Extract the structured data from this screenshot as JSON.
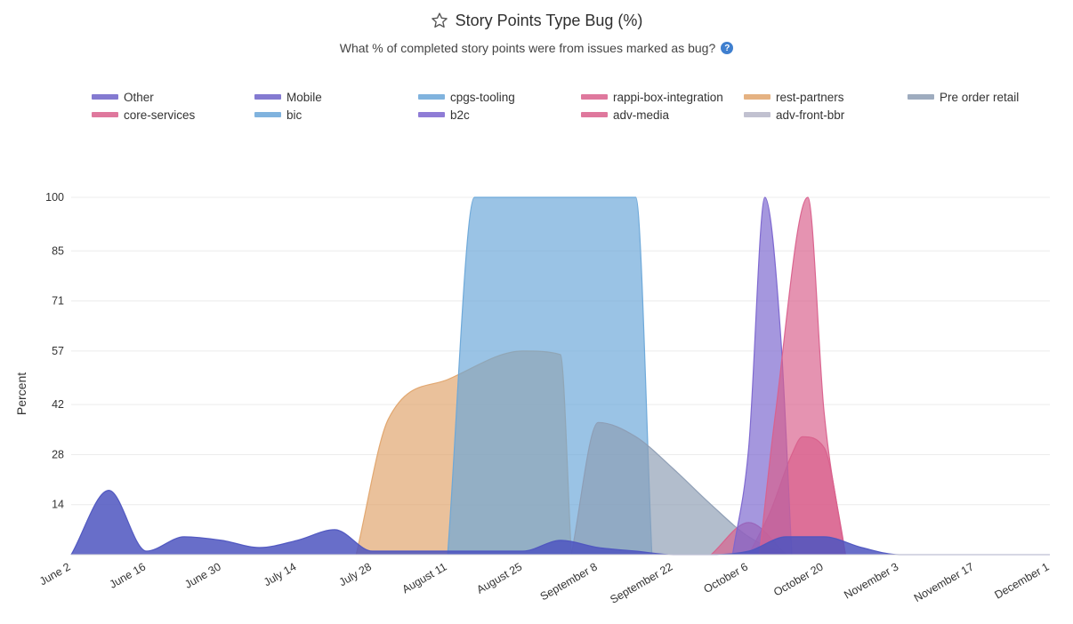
{
  "header": {
    "title": "Story Points Type Bug (%)",
    "subtitle": "What % of completed story points were from issues marked as bug?",
    "star_icon": "star-outline-icon",
    "help_icon": "question-circle-icon",
    "help_glyph": "?"
  },
  "chart_data": {
    "type": "area",
    "title": "Story Points Type Bug (%)",
    "subtitle": "What % of completed story points were from issues marked as bug?",
    "xlabel": "",
    "ylabel": "Percent",
    "x_ticks": [
      "June 2",
      "June 16",
      "June 30",
      "July 14",
      "July 28",
      "August 11",
      "August 25",
      "September 8",
      "September 22",
      "October 6",
      "October 20",
      "November 3",
      "November 17",
      "December 1"
    ],
    "y_ticks": [
      14,
      28,
      42,
      57,
      71,
      85,
      100
    ],
    "ylim": [
      0,
      100
    ],
    "grid": true,
    "legend_position": "top",
    "legend": [
      "Other",
      "Mobile",
      "cpgs-tooling",
      "rappi-box-integration",
      "rest-partners",
      "Pre order retail",
      "core-services",
      "bic",
      "b2c",
      "adv-media",
      "adv-front-bbr"
    ],
    "series": [
      {
        "name": "Other",
        "color": "#6f63c9",
        "x": [
          "June 2"
        ],
        "values": [
          0
        ]
      },
      {
        "name": "Mobile",
        "color": "#6f63c9",
        "x": [
          "June 2"
        ],
        "values": [
          0
        ]
      },
      {
        "name": "cpgs-tooling",
        "color": "#6aa6d8",
        "x": [
          "August 11",
          "August 16",
          "August 22",
          "August 28",
          "September 3",
          "September 9",
          "September 15",
          "September 18"
        ],
        "values": [
          0,
          100,
          100,
          100,
          100,
          100,
          100,
          0
        ]
      },
      {
        "name": "rappi-box-integration",
        "color": "#d9608c",
        "x": [
          "October 6",
          "October 10",
          "October 14",
          "October 16",
          "October 20",
          "October 24"
        ],
        "values": [
          0,
          12,
          28,
          33,
          30,
          0
        ]
      },
      {
        "name": "rest-partners",
        "color": "#e0a46c",
        "x": [
          "July 25",
          "July 31",
          "August 11",
          "August 25",
          "September 1",
          "September 3"
        ],
        "values": [
          0,
          38,
          49,
          57,
          56,
          0
        ]
      },
      {
        "name": "Pre order retail",
        "color": "#8d9db4",
        "x": [
          "September 3",
          "September 8",
          "September 15",
          "September 22",
          "September 29",
          "October 6",
          "October 13"
        ],
        "values": [
          0,
          37,
          33,
          24,
          14,
          5,
          0
        ]
      },
      {
        "name": "core-services",
        "color": "#d9608c",
        "x": [
          "September 29",
          "October 6",
          "October 13"
        ],
        "values": [
          0,
          9,
          0
        ]
      },
      {
        "name": "bic",
        "color": "#6aa6d8",
        "x": [
          "June 2"
        ],
        "values": [
          0
        ]
      },
      {
        "name": "b2c",
        "color": "#7b65cf",
        "x": [
          "October 3",
          "October 6",
          "October 9",
          "October 12",
          "October 14"
        ],
        "values": [
          0,
          30,
          100,
          60,
          0
        ]
      },
      {
        "name": "adv-media",
        "color": "#d9608c",
        "x": [
          "October 8",
          "October 11",
          "October 17",
          "October 20",
          "October 24"
        ],
        "values": [
          0,
          40,
          100,
          40,
          0
        ]
      },
      {
        "name": "adv-front-bbr",
        "color": "#b6b6c8",
        "x": [
          "June 2"
        ],
        "values": [
          0
        ]
      },
      {
        "name": "",
        "color": "#4e55c0",
        "x": [
          "June 2",
          "June 9",
          "June 16",
          "June 23",
          "June 30",
          "July 7",
          "July 14",
          "July 21",
          "July 28",
          "August 4",
          "August 11",
          "August 18",
          "August 25",
          "September 1",
          "September 8",
          "September 15",
          "September 22",
          "September 29",
          "October 6",
          "October 13",
          "October 20",
          "October 27",
          "November 3",
          "December 1"
        ],
        "values": [
          0,
          18,
          1,
          5,
          4,
          2,
          4,
          7,
          1,
          1,
          1,
          1,
          1,
          4,
          2,
          1,
          0,
          0,
          1,
          5,
          5,
          2,
          0,
          0
        ]
      }
    ]
  }
}
